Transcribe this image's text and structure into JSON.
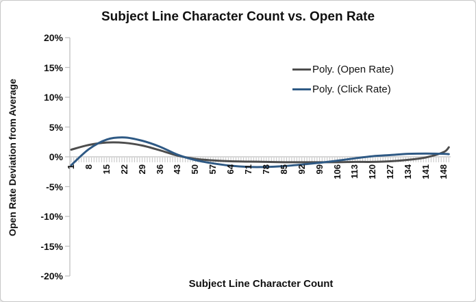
{
  "chart": {
    "title": "Subject Line Character Count vs. Open Rate",
    "x_axis_title": "Subject Line Character Count",
    "y_axis_title": "Open Rate Deviation from Average",
    "y_tick_labels": [
      "20%",
      "15%",
      "10%",
      "5%",
      "0%",
      "-5%",
      "-10%",
      "-15%",
      "-20%"
    ],
    "x_tick_labels": [
      "1",
      "8",
      "15",
      "22",
      "29",
      "36",
      "43",
      "50",
      "57",
      "64",
      "71",
      "78",
      "85",
      "92",
      "99",
      "106",
      "113",
      "120",
      "127",
      "134",
      "141",
      "148"
    ],
    "colors": {
      "open_rate_line": "#4d4d4d",
      "click_rate_line": "#2e5984",
      "axis_line": "#bfbfbf",
      "tick_comb": "#c3c3c3",
      "text": "#111111"
    }
  },
  "chart_data": {
    "type": "line",
    "title": "Subject Line Character Count vs. Open Rate",
    "xlabel": "Subject Line Character Count",
    "ylabel": "Open Rate Deviation from Average",
    "x_tick_values": [
      1,
      8,
      15,
      22,
      29,
      36,
      43,
      50,
      57,
      64,
      71,
      78,
      85,
      92,
      99,
      106,
      113,
      120,
      127,
      134,
      141,
      148
    ],
    "ylim": [
      -20,
      20
    ],
    "y_tick_step": 5,
    "y_unit": "%",
    "grid": "none",
    "legend_position": "inside-top-right",
    "series": [
      {
        "name": "Poly. (Open Rate)",
        "color": "#4d4d4d",
        "x": [
          1,
          8,
          15,
          22,
          29,
          36,
          43,
          50,
          57,
          64,
          71,
          78,
          85,
          92,
          99,
          106,
          113,
          120,
          127,
          134,
          141,
          148,
          150
        ],
        "values": [
          1.2,
          2.0,
          2.4,
          2.35,
          1.9,
          1.1,
          0.2,
          -0.35,
          -0.6,
          -0.75,
          -0.8,
          -0.85,
          -0.9,
          -0.9,
          -0.9,
          -0.9,
          -0.85,
          -0.85,
          -0.75,
          -0.5,
          -0.1,
          0.8,
          1.6
        ]
      },
      {
        "name": "Poly. (Click Rate)",
        "color": "#2e5984",
        "x": [
          1,
          8,
          15,
          22,
          29,
          36,
          43,
          50,
          57,
          64,
          71,
          78,
          85,
          92,
          99,
          106,
          113,
          120,
          127,
          134,
          141,
          148,
          150
        ],
        "values": [
          -1.4,
          1.3,
          2.9,
          3.25,
          2.7,
          1.7,
          0.35,
          -0.55,
          -1.1,
          -1.5,
          -1.7,
          -1.7,
          -1.55,
          -1.3,
          -1.0,
          -0.65,
          -0.25,
          0.1,
          0.3,
          0.5,
          0.55,
          0.5,
          0.45
        ]
      }
    ]
  }
}
